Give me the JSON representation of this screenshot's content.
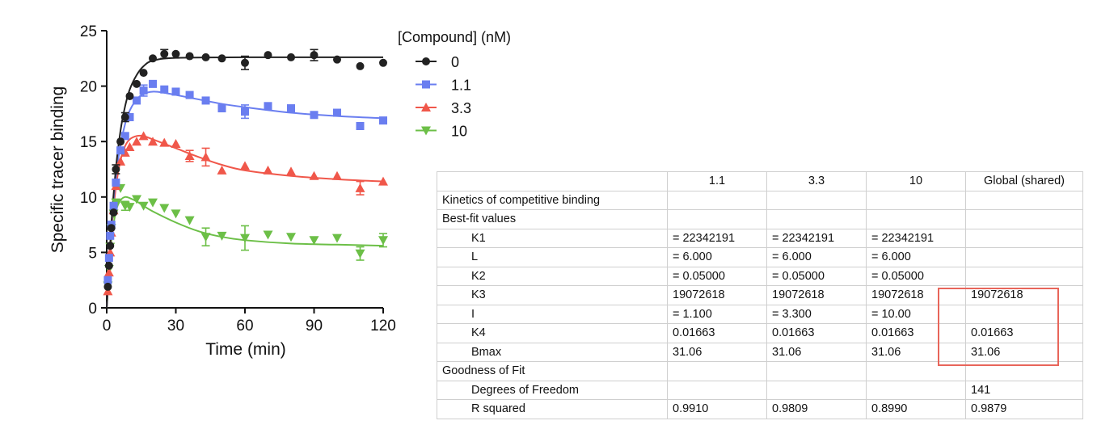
{
  "chart_data": {
    "type": "scatter",
    "xlabel": "Time (min)",
    "ylabel": "Specific tracer binding",
    "xlim": [
      0,
      120
    ],
    "ylim": [
      0,
      25
    ],
    "xticks": [
      "0",
      "30",
      "60",
      "90",
      "120"
    ],
    "yticks": [
      "0",
      "5",
      "10",
      "15",
      "20",
      "25"
    ],
    "grid": false,
    "legend_title": "[Compound] (nM)",
    "legend_position": "top-right",
    "series": [
      {
        "name": "0",
        "color": "#222222",
        "marker": "circle",
        "points": [
          [
            0.5,
            1.9
          ],
          [
            1,
            3.8
          ],
          [
            1.5,
            5.6
          ],
          [
            2,
            7.2
          ],
          [
            3,
            8.6
          ],
          [
            4,
            12.5
          ],
          [
            6,
            15
          ],
          [
            8,
            17.2
          ],
          [
            10,
            19.1
          ],
          [
            13,
            20.2
          ],
          [
            16,
            21.2
          ],
          [
            20,
            22.5
          ],
          [
            25,
            22.9
          ],
          [
            30,
            22.9
          ],
          [
            36,
            22.7
          ],
          [
            43,
            22.6
          ],
          [
            50,
            22.5
          ],
          [
            60,
            22.1
          ],
          [
            70,
            22.8
          ],
          [
            80,
            22.6
          ],
          [
            90,
            22.8
          ],
          [
            100,
            22.4
          ],
          [
            110,
            21.8
          ],
          [
            120,
            22.1
          ]
        ],
        "error": [
          [
            25,
            0.4
          ],
          [
            60,
            0.6
          ],
          [
            90,
            0.5
          ],
          [
            4,
            0.4
          ],
          [
            8,
            0.4
          ]
        ],
        "fit": [
          [
            0,
            0
          ],
          [
            2,
            7.5
          ],
          [
            4,
            12.6
          ],
          [
            6,
            16.0
          ],
          [
            8,
            18.2
          ],
          [
            10,
            19.7
          ],
          [
            13,
            21.0
          ],
          [
            16,
            21.8
          ],
          [
            20,
            22.3
          ],
          [
            30,
            22.55
          ],
          [
            60,
            22.6
          ],
          [
            120,
            22.6
          ]
        ]
      },
      {
        "name": "1.1",
        "color": "#6a7ef0",
        "marker": "square",
        "points": [
          [
            0.5,
            2.5
          ],
          [
            1,
            4.5
          ],
          [
            1.5,
            6.5
          ],
          [
            2,
            7.5
          ],
          [
            3,
            9.2
          ],
          [
            4,
            11.3
          ],
          [
            6,
            14.2
          ],
          [
            8,
            15.5
          ],
          [
            10,
            17.2
          ],
          [
            13,
            18.7
          ],
          [
            16,
            19.6
          ],
          [
            20,
            20.2
          ],
          [
            25,
            19.7
          ],
          [
            30,
            19.5
          ],
          [
            36,
            19.2
          ],
          [
            43,
            18.7
          ],
          [
            50,
            18
          ],
          [
            60,
            17.7
          ],
          [
            70,
            18.2
          ],
          [
            80,
            18
          ],
          [
            90,
            17.4
          ],
          [
            100,
            17.6
          ],
          [
            110,
            16.4
          ],
          [
            120,
            16.9
          ]
        ],
        "error": [
          [
            60,
            0.6
          ],
          [
            16,
            0.5
          ]
        ],
        "fit": [
          [
            0,
            0
          ],
          [
            2,
            7.2
          ],
          [
            4,
            11.8
          ],
          [
            6,
            14.7
          ],
          [
            8,
            16.6
          ],
          [
            10,
            17.8
          ],
          [
            13,
            18.8
          ],
          [
            16,
            19.3
          ],
          [
            20,
            19.5
          ],
          [
            25,
            19.4
          ],
          [
            30,
            19.2
          ],
          [
            40,
            18.8
          ],
          [
            50,
            18.4
          ],
          [
            60,
            18.1
          ],
          [
            80,
            17.6
          ],
          [
            100,
            17.3
          ],
          [
            120,
            17.1
          ]
        ]
      },
      {
        "name": "3.3",
        "color": "#f0574a",
        "marker": "triangle-up",
        "points": [
          [
            0.5,
            1.5
          ],
          [
            1,
            3.2
          ],
          [
            1.5,
            5
          ],
          [
            2,
            6.8
          ],
          [
            3,
            8.8
          ],
          [
            4,
            11
          ],
          [
            6,
            13.2
          ],
          [
            8,
            14
          ],
          [
            10,
            14.5
          ],
          [
            13,
            15
          ],
          [
            16,
            15.5
          ],
          [
            20,
            15
          ],
          [
            25,
            14.9
          ],
          [
            30,
            14.8
          ],
          [
            36,
            13.7
          ],
          [
            43,
            13.6
          ],
          [
            50,
            12.4
          ],
          [
            60,
            12.8
          ],
          [
            70,
            12.4
          ],
          [
            80,
            12.3
          ],
          [
            90,
            11.9
          ],
          [
            100,
            11.9
          ],
          [
            110,
            10.8
          ],
          [
            120,
            11.4
          ]
        ],
        "error": [
          [
            36,
            0.5
          ],
          [
            43,
            0.8
          ],
          [
            110,
            0.6
          ]
        ],
        "fit": [
          [
            0,
            0
          ],
          [
            2,
            6.8
          ],
          [
            4,
            10.9
          ],
          [
            6,
            13.3
          ],
          [
            8,
            14.6
          ],
          [
            10,
            15.2
          ],
          [
            13,
            15.5
          ],
          [
            16,
            15.5
          ],
          [
            20,
            15.2
          ],
          [
            30,
            14.4
          ],
          [
            40,
            13.6
          ],
          [
            50,
            12.9
          ],
          [
            60,
            12.4
          ],
          [
            80,
            11.9
          ],
          [
            100,
            11.6
          ],
          [
            120,
            11.4
          ]
        ]
      },
      {
        "name": "10",
        "color": "#6cbf47",
        "marker": "triangle-down",
        "points": [
          [
            0.5,
            2
          ],
          [
            1,
            3.5
          ],
          [
            1.5,
            5.5
          ],
          [
            2,
            7.2
          ],
          [
            3,
            8.5
          ],
          [
            4,
            9.5
          ],
          [
            6,
            10.8
          ],
          [
            8,
            9.2
          ],
          [
            10,
            9.1
          ],
          [
            13,
            9.8
          ],
          [
            16,
            9.2
          ],
          [
            20,
            9.5
          ],
          [
            25,
            9
          ],
          [
            30,
            8.5
          ],
          [
            36,
            7.9
          ],
          [
            43,
            6.4
          ],
          [
            50,
            6.5
          ],
          [
            60,
            6.3
          ],
          [
            70,
            6.6
          ],
          [
            80,
            6.4
          ],
          [
            90,
            6.1
          ],
          [
            100,
            6.3
          ],
          [
            110,
            4.9
          ],
          [
            120,
            6.1
          ]
        ],
        "error": [
          [
            43,
            0.8
          ],
          [
            60,
            1.1
          ],
          [
            110,
            0.6
          ],
          [
            120,
            0.6
          ],
          [
            8,
            0.4
          ]
        ],
        "fit": [
          [
            0,
            0
          ],
          [
            2,
            6.0
          ],
          [
            4,
            8.7
          ],
          [
            6,
            9.7
          ],
          [
            8,
            10.0
          ],
          [
            10,
            9.9
          ],
          [
            13,
            9.6
          ],
          [
            16,
            9.2
          ],
          [
            20,
            8.7
          ],
          [
            30,
            7.7
          ],
          [
            40,
            6.9
          ],
          [
            50,
            6.4
          ],
          [
            60,
            6.1
          ],
          [
            80,
            5.8
          ],
          [
            100,
            5.7
          ],
          [
            120,
            5.6
          ]
        ]
      }
    ]
  },
  "table": {
    "header": [
      "",
      "1.1",
      "3.3",
      "10",
      "Global (shared)"
    ],
    "rows": [
      {
        "label": "Kinetics of competitive binding",
        "indent": false,
        "cells": [
          "",
          "",
          "",
          ""
        ]
      },
      {
        "label": "Best-fit values",
        "indent": false,
        "cells": [
          "",
          "",
          "",
          ""
        ]
      },
      {
        "label": "K1",
        "indent": true,
        "cells": [
          "= 22342191",
          "= 22342191",
          "= 22342191",
          ""
        ]
      },
      {
        "label": "L",
        "indent": true,
        "cells": [
          "= 6.000",
          "= 6.000",
          "= 6.000",
          ""
        ]
      },
      {
        "label": "K2",
        "indent": true,
        "cells": [
          "= 0.05000",
          "= 0.05000",
          "= 0.05000",
          ""
        ]
      },
      {
        "label": "K3",
        "indent": true,
        "cells": [
          "19072618",
          "19072618",
          "19072618",
          "19072618"
        ]
      },
      {
        "label": "I",
        "indent": true,
        "cells": [
          "= 1.100",
          "= 3.300",
          "= 10.00",
          ""
        ]
      },
      {
        "label": "K4",
        "indent": true,
        "cells": [
          "0.01663",
          "0.01663",
          "0.01663",
          "0.01663"
        ]
      },
      {
        "label": "Bmax",
        "indent": true,
        "cells": [
          "31.06",
          "31.06",
          "31.06",
          "31.06"
        ]
      },
      {
        "label": "Goodness of Fit",
        "indent": false,
        "cells": [
          "",
          "",
          "",
          ""
        ]
      },
      {
        "label": "Degrees of Freedom",
        "indent": true,
        "cells": [
          "",
          "",
          "",
          "141"
        ]
      },
      {
        "label": "R squared",
        "indent": true,
        "cells": [
          "0.9910",
          "0.9809",
          "0.8990",
          "0.9879"
        ]
      }
    ],
    "highlight_color": "#e8655a"
  }
}
